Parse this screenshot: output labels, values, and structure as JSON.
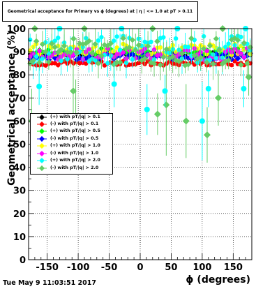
{
  "title": "Geometrical acceptance for Primary vs ϕ (degrees) at | η | <= 1.0 at pT > 0.11",
  "timestamp": "Tue May  9 11:03:51 2017",
  "chart_data": {
    "type": "scatter",
    "xlabel": "ϕ (degrees)",
    "ylabel": "Geometrical acceptance (%)",
    "xlim": [
      -180,
      180
    ],
    "ylim": [
      0,
      100
    ],
    "x_ticks": [
      "-150",
      "-100",
      "-50",
      "0",
      "50",
      "100",
      "150"
    ],
    "y_ticks": [
      "0",
      "10",
      "20",
      "30",
      "40",
      "50",
      "60",
      "70",
      "80",
      "90",
      "100"
    ],
    "grid": true,
    "legend_position": "left-middle",
    "series": [
      {
        "name": "(+) with pT/|q| > 0.1",
        "color": "#000000",
        "marker": "circle",
        "level": 89,
        "spread": 1.0,
        "err": 0.8
      },
      {
        "name": "(-) with pT/|q| > 0.1",
        "color": "#ff0000",
        "marker": "circle",
        "level": 85,
        "spread": 1.0,
        "err": 0.8
      },
      {
        "name": "(+) with pT/|q| > 0.5",
        "color": "#00ff00",
        "marker": "circle",
        "level": 90,
        "spread": 1.5,
        "err": 1.0
      },
      {
        "name": "(-) with pT/|q| > 0.5",
        "color": "#0000ff",
        "marker": "diamond",
        "level": 88,
        "spread": 1.5,
        "err": 1.0
      },
      {
        "name": "(+) with pT/|q| > 1.0",
        "color": "#ffff00",
        "marker": "circle",
        "level": 91,
        "spread": 2.5,
        "err": 1.5
      },
      {
        "name": "(-) with pT/|q| > 1.0",
        "color": "#ff00ff",
        "marker": "circle",
        "level": 89,
        "spread": 2.5,
        "err": 1.5
      },
      {
        "name": "(+) with pT/|q| > 2.0",
        "color": "#00ffff",
        "marker": "circle",
        "level": 91,
        "spread": 6.0,
        "err": 5.0
      },
      {
        "name": "(-) with pT/|q| > 2.0",
        "color": "#66cc66",
        "marker": "diamond",
        "level": 90,
        "spread": 6.0,
        "err": 5.0
      }
    ],
    "outliers": [
      {
        "series": 7,
        "x": -175,
        "y": 60,
        "err": 14
      },
      {
        "series": 6,
        "x": -163,
        "y": 75,
        "err": 8
      },
      {
        "series": 7,
        "x": -108,
        "y": 73,
        "err": 14
      },
      {
        "series": 7,
        "x": -104,
        "y": 60,
        "err": 18
      },
      {
        "series": 6,
        "x": -42,
        "y": 76,
        "err": 10
      },
      {
        "series": 6,
        "x": 11,
        "y": 65,
        "err": 11
      },
      {
        "series": 7,
        "x": 28,
        "y": 63,
        "err": 9
      },
      {
        "series": 7,
        "x": 42,
        "y": 67,
        "err": 22
      },
      {
        "series": 6,
        "x": 40,
        "y": 73,
        "err": 7
      },
      {
        "series": 7,
        "x": 74,
        "y": 60,
        "err": 16
      },
      {
        "series": 6,
        "x": 100,
        "y": 60,
        "err": 17
      },
      {
        "series": 7,
        "x": 108,
        "y": 54,
        "err": 12
      },
      {
        "series": 7,
        "x": 126,
        "y": 70,
        "err": 12
      },
      {
        "series": 6,
        "x": 110,
        "y": 74,
        "err": 8
      },
      {
        "series": 6,
        "x": 167,
        "y": 74,
        "err": 8
      },
      {
        "series": 7,
        "x": 175,
        "y": 79,
        "err": 8
      },
      {
        "series": 7,
        "x": -170,
        "y": 100,
        "err": 0
      },
      {
        "series": 6,
        "x": -130,
        "y": 100,
        "err": 0
      },
      {
        "series": 7,
        "x": -90,
        "y": 100,
        "err": 0
      },
      {
        "series": 6,
        "x": -30,
        "y": 100,
        "err": 0
      },
      {
        "series": 7,
        "x": 20,
        "y": 100,
        "err": 0
      },
      {
        "series": 6,
        "x": 60,
        "y": 100,
        "err": 0
      },
      {
        "series": 7,
        "x": 133,
        "y": 100,
        "err": 0
      },
      {
        "series": 6,
        "x": 170,
        "y": 100,
        "err": 0
      }
    ]
  }
}
